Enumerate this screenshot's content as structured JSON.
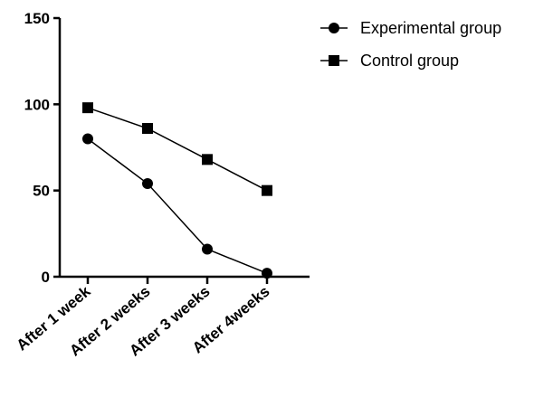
{
  "chart_data": {
    "type": "line",
    "title": "",
    "xlabel": "",
    "ylabel": "",
    "categories": [
      "After 1 week",
      "After 2 weeks",
      "After 3 weeks",
      "After 4weeks"
    ],
    "ylim": [
      0,
      150
    ],
    "yticks": [
      0,
      50,
      100,
      150
    ],
    "grid": false,
    "legend_position": "top-right",
    "series": [
      {
        "name": "Experimental group",
        "marker": "circle",
        "color": "#000000",
        "values": [
          80,
          54,
          16,
          2
        ]
      },
      {
        "name": "Control group",
        "marker": "square",
        "color": "#000000",
        "values": [
          98,
          86,
          68,
          50
        ]
      }
    ]
  }
}
